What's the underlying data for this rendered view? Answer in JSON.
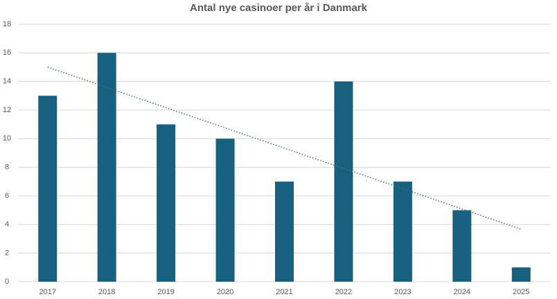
{
  "chart_data": {
    "type": "bar",
    "title": "Antal nye casinoer per år i Danmark",
    "categories": [
      "2017",
      "2018",
      "2019",
      "2020",
      "2021",
      "2022",
      "2023",
      "2024",
      "2025"
    ],
    "values": [
      13,
      16,
      11,
      10,
      7,
      14,
      7,
      5,
      1
    ],
    "color": "#17607f",
    "ylim": [
      0,
      18
    ],
    "yticks": [
      0,
      2,
      4,
      6,
      8,
      10,
      12,
      14,
      16,
      18
    ],
    "grid": true,
    "trendline": {
      "values": [
        15,
        3.67
      ],
      "color": "#4a7a6a"
    }
  }
}
